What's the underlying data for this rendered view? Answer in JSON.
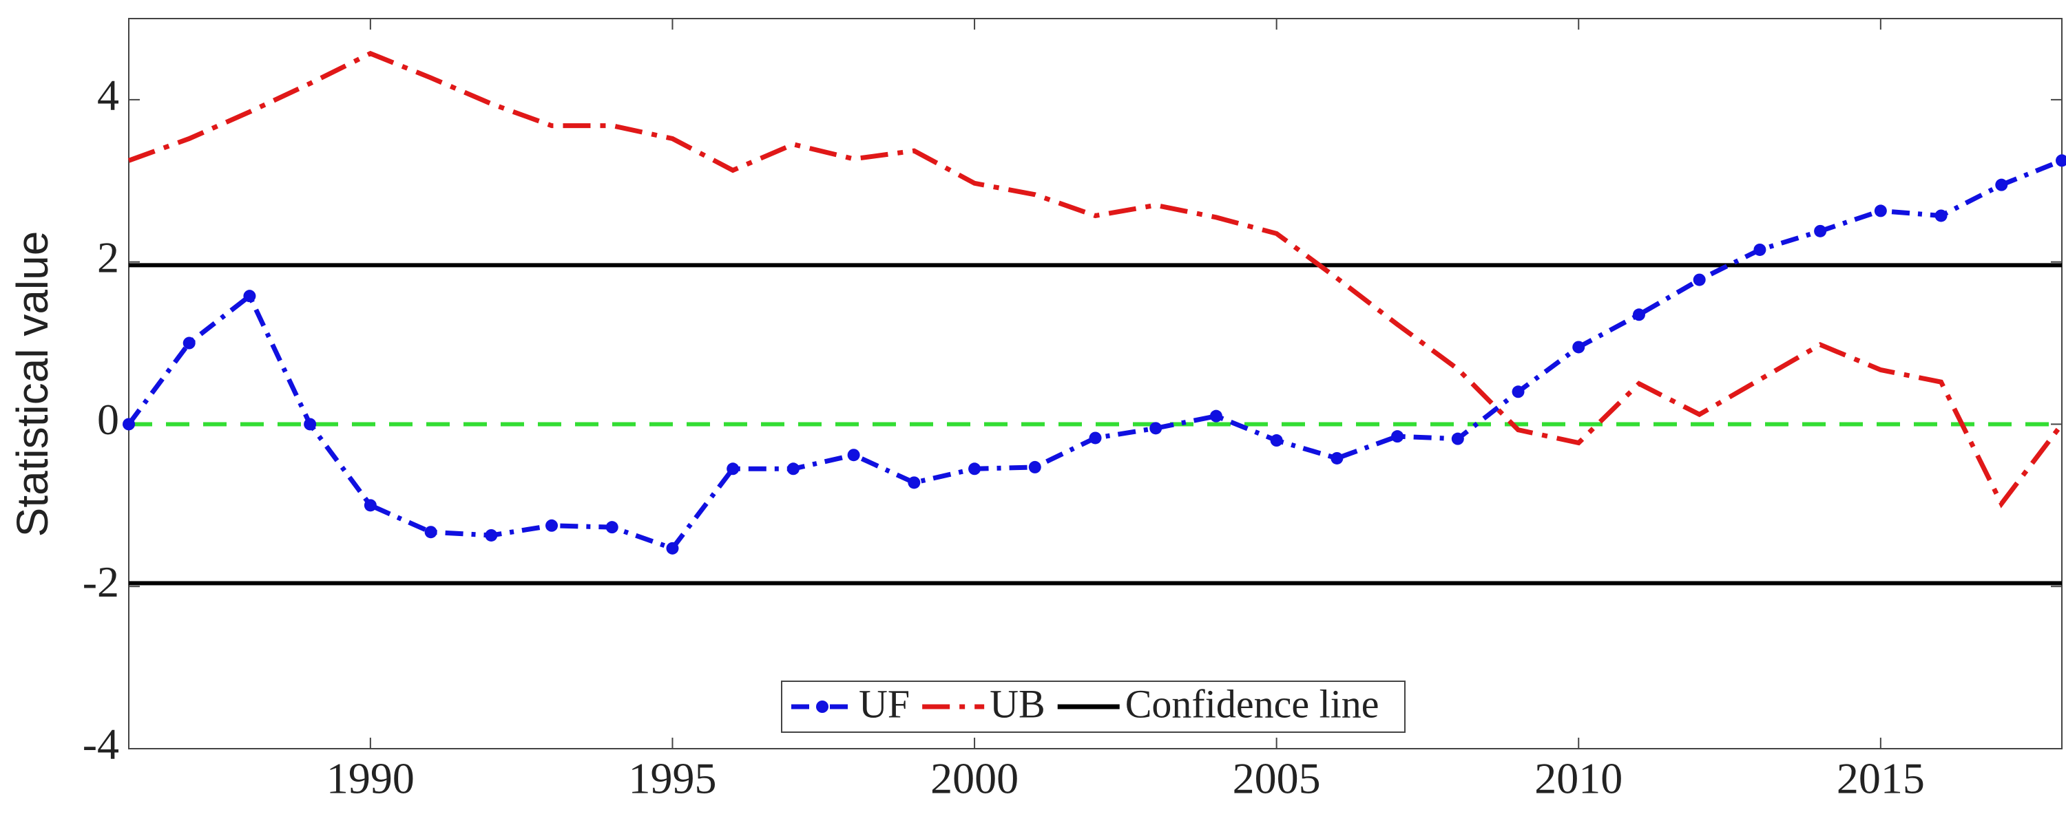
{
  "chart_data": {
    "type": "line",
    "ylabel": "Statistical value",
    "x": [
      1986,
      1987,
      1988,
      1989,
      1990,
      1991,
      1992,
      1993,
      1994,
      1995,
      1996,
      1997,
      1998,
      1999,
      2000,
      2001,
      2002,
      2003,
      2004,
      2005,
      2006,
      2007,
      2008,
      2009,
      2010,
      2011,
      2012,
      2013,
      2014,
      2015,
      2016,
      2017,
      2018
    ],
    "series": [
      {
        "name": "UF",
        "color": "#1010e0",
        "marker": true,
        "values": [
          0,
          1.0,
          1.58,
          0.0,
          -1.0,
          -1.33,
          -1.37,
          -1.25,
          -1.27,
          -1.53,
          -0.55,
          -0.55,
          -0.38,
          -0.72,
          -0.55,
          -0.53,
          -0.17,
          -0.05,
          0.1,
          -0.2,
          -0.42,
          -0.15,
          -0.18,
          0.4,
          0.95,
          1.35,
          1.78,
          2.15,
          2.38,
          2.63,
          2.57,
          2.95,
          3.25
        ]
      },
      {
        "name": "UB",
        "color": "#e01818",
        "marker": false,
        "values": [
          3.25,
          3.52,
          3.85,
          4.2,
          4.57,
          4.27,
          3.95,
          3.68,
          3.68,
          3.52,
          3.13,
          3.45,
          3.27,
          3.37,
          2.97,
          2.83,
          2.57,
          2.7,
          2.55,
          2.35,
          1.8,
          1.23,
          0.68,
          -0.07,
          -0.23,
          0.5,
          0.12,
          0.55,
          0.98,
          0.67,
          0.52,
          -0.98,
          0
        ]
      }
    ],
    "confidence_line": {
      "name": "Confidence line",
      "color": "#000000",
      "values": [
        1.96,
        -1.96
      ]
    },
    "zero_line": {
      "value": 0,
      "color": "#33dd33"
    },
    "xlim": [
      1986,
      2018
    ],
    "xticks": [
      1990,
      1995,
      2000,
      2005,
      2010,
      2015
    ],
    "ylim": [
      -4,
      5
    ],
    "yticks": [
      -4,
      -2,
      0,
      2,
      4
    ],
    "legend": "lower center"
  }
}
